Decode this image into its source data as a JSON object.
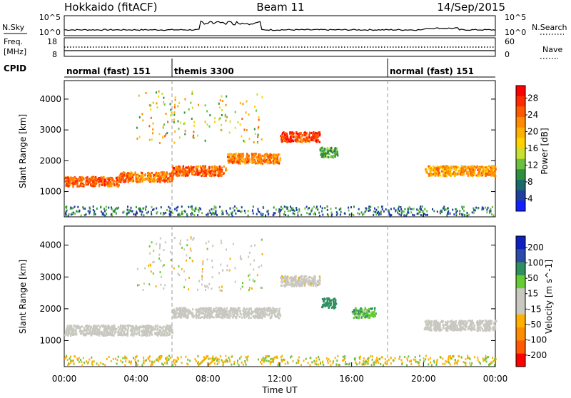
{
  "header": {
    "title": "Hokkaido (fitACF)",
    "beam": "Beam 11",
    "date": "14/Sep/2015"
  },
  "strip_nsky": {
    "left_label": "N.Sky",
    "right_label": "N.Search",
    "left_ticks": [
      "10^5",
      "10^0"
    ],
    "right_ticks": [
      "10^5",
      "10^0"
    ]
  },
  "strip_freq": {
    "left_label_1": "Freq.",
    "left_label_2": "[MHz]",
    "right_label": "Nave",
    "left_ticks": [
      "18",
      "8"
    ],
    "right_ticks": [
      "60",
      "0"
    ]
  },
  "cpid": {
    "label": "CPID",
    "modes": [
      {
        "name": "normal (fast) 151",
        "start_hour": 0,
        "end_hour": 6
      },
      {
        "name": "themis 3300",
        "start_hour": 6,
        "end_hour": 18
      },
      {
        "name": "normal (fast) 151",
        "start_hour": 18,
        "end_hour": 24
      }
    ]
  },
  "time_axis": {
    "xlabel": "Time UT",
    "ticks": [
      "00:00",
      "04:00",
      "08:00",
      "12:00",
      "16:00",
      "20:00",
      "00:00"
    ]
  },
  "colorbar_power": {
    "label": "Power [dB]",
    "ticks": [
      "28",
      "24",
      "20",
      "16",
      "12",
      "8",
      "4"
    ],
    "colors": [
      "#ff0000",
      "#ff2a00",
      "#ff5a00",
      "#ff8c00",
      "#ffb000",
      "#ffd200",
      "#c8e030",
      "#6cc040",
      "#2f8f3f",
      "#1a6a6a",
      "#1f3fa0",
      "#1020ff"
    ]
  },
  "colorbar_velocity": {
    "label": "Velocity [m s^-1]",
    "ticks": [
      "200",
      "100",
      "50",
      "15",
      "-15",
      "-50",
      "-100",
      "-200"
    ],
    "colors": [
      "#1020c0",
      "#2c4aa8",
      "#2f8f5f",
      "#66cc33",
      "#c8c8c0",
      "#c8c8c0",
      "#ffb000",
      "#ff8c00",
      "#ff5a00",
      "#ff0000"
    ]
  },
  "chart_data": {
    "type": "heatmap",
    "panels": [
      "power",
      "velocity"
    ],
    "ylabel": "Slant Range [km]",
    "yticks": [
      1000,
      2000,
      3000,
      4000
    ],
    "ylim": [
      180,
      4600
    ],
    "xlim": [
      0,
      24
    ],
    "dashed_lines_hours": [
      6,
      18
    ],
    "power_echo_bands": [
      {
        "start_hour": 0.0,
        "end_hour": 3.0,
        "range_center_km": 1350,
        "level_db": 26
      },
      {
        "start_hour": 3.0,
        "end_hour": 6.0,
        "range_center_km": 1500,
        "level_db": 24
      },
      {
        "start_hour": 6.0,
        "end_hour": 9.0,
        "range_center_km": 1700,
        "level_db": 26
      },
      {
        "start_hour": 9.0,
        "end_hour": 12.0,
        "range_center_km": 2100,
        "level_db": 24
      },
      {
        "start_hour": 12.0,
        "end_hour": 14.2,
        "range_center_km": 2800,
        "level_db": 28
      },
      {
        "start_hour": 14.2,
        "end_hour": 15.2,
        "range_center_km": 2300,
        "level_db": 10
      },
      {
        "start_hour": 20.0,
        "end_hour": 24.0,
        "range_center_km": 1700,
        "level_db": 22
      }
    ],
    "velocity_echo_bands": [
      {
        "start_hour": 0.0,
        "end_hour": 6.0,
        "range_center_km": 1350,
        "velocity_ms": 0
      },
      {
        "start_hour": 6.0,
        "end_hour": 12.0,
        "range_center_km": 1900,
        "velocity_ms": 0
      },
      {
        "start_hour": 12.0,
        "end_hour": 14.2,
        "range_center_km": 2900,
        "velocity_ms": -10
      },
      {
        "start_hour": 14.3,
        "end_hour": 15.1,
        "range_center_km": 2200,
        "velocity_ms": 60
      },
      {
        "start_hour": 16.0,
        "end_hour": 17.3,
        "range_center_km": 1900,
        "velocity_ms": 30
      },
      {
        "start_hour": 20.0,
        "end_hour": 24.0,
        "range_center_km": 1500,
        "velocity_ms": 0
      }
    ]
  }
}
